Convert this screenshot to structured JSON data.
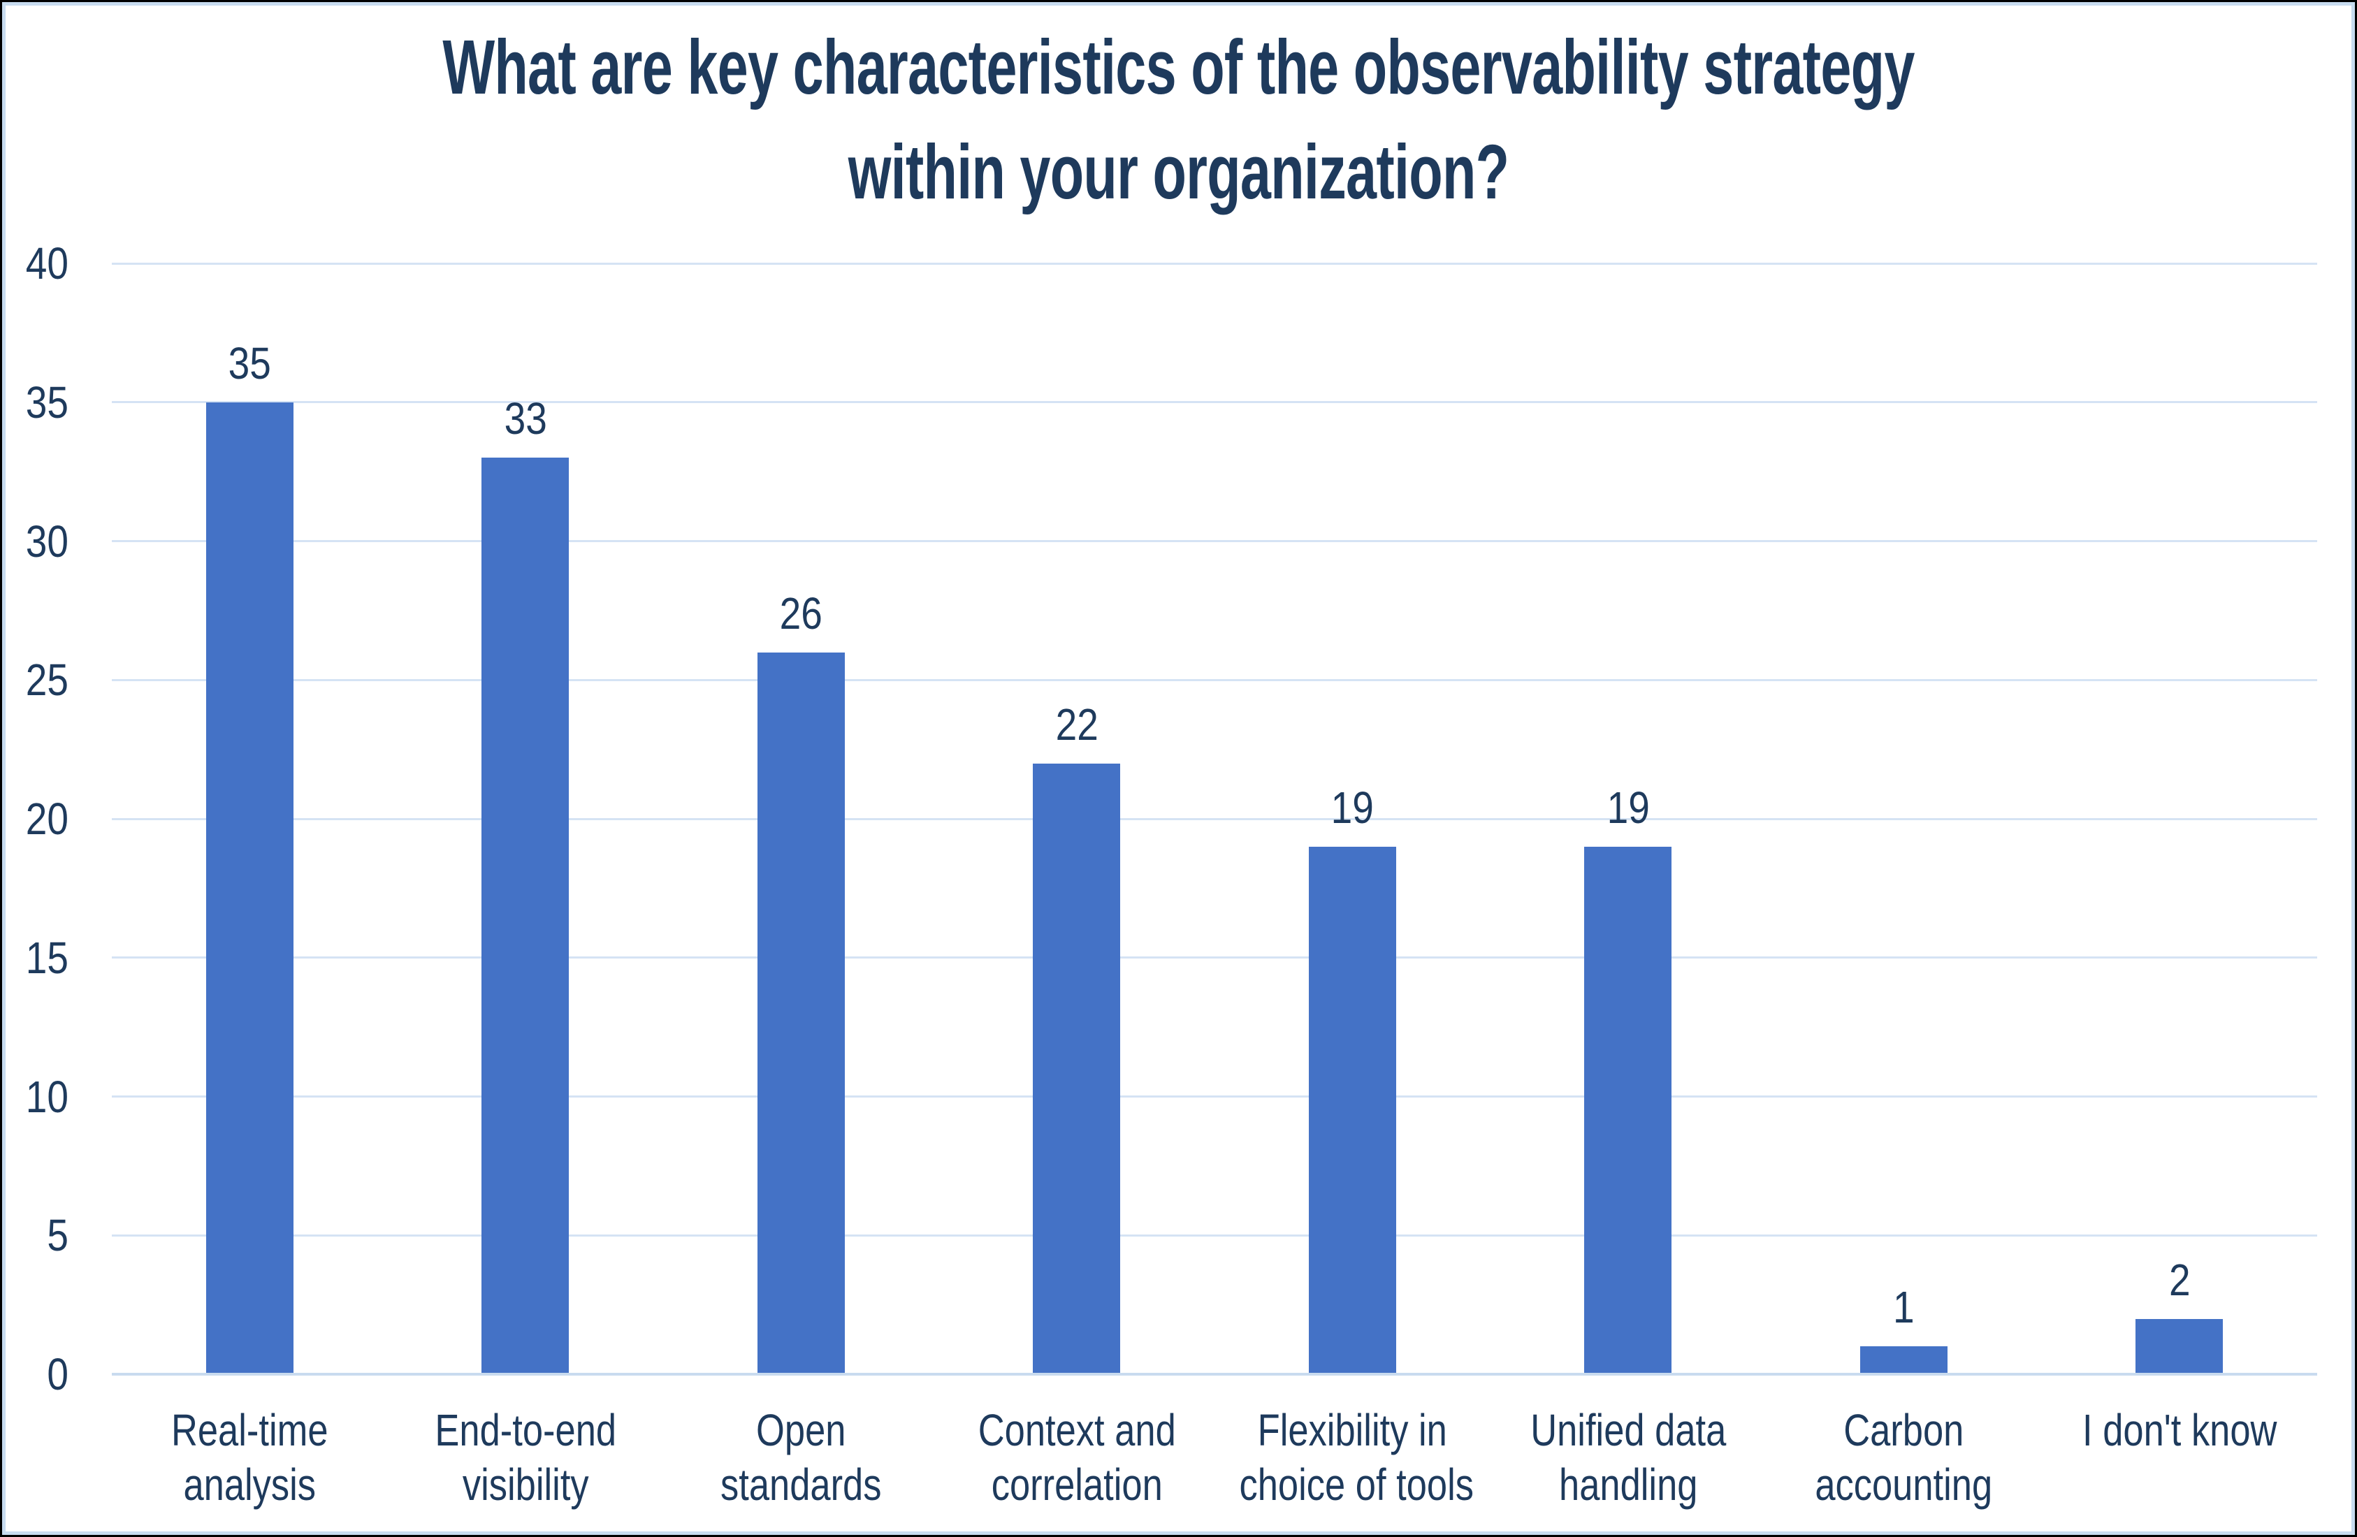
{
  "chart_data": {
    "type": "bar",
    "title": "What are key characteristics of the observability strategy within your organization?",
    "title_lines": [
      "What are key characteristics of the observability strategy",
      "within your organization?"
    ],
    "categories": [
      "Real-time analysis",
      "End-to-end visibility",
      "Open standards",
      "Context and correlation",
      "Flexibility in choice of tools",
      "Unified data handling",
      "Carbon accounting",
      "I don't know"
    ],
    "categories_wrapped": [
      [
        "Real-time",
        "analysis"
      ],
      [
        "End-to-end",
        "visibility"
      ],
      [
        "Open",
        "standards"
      ],
      [
        "Context and",
        "correlation"
      ],
      [
        "Flexibility in",
        "choice of tools"
      ],
      [
        "Unified data",
        "handling"
      ],
      [
        "Carbon",
        "accounting"
      ],
      [
        "I don't know"
      ]
    ],
    "values": [
      35,
      33,
      26,
      22,
      19,
      19,
      1,
      2
    ],
    "data_labels": [
      "35",
      "33",
      "26",
      "22",
      "19",
      "19",
      "1",
      "2"
    ],
    "xlabel": "",
    "ylabel": "",
    "ylim": [
      0,
      40
    ],
    "yticks": [
      0,
      5,
      10,
      15,
      20,
      25,
      30,
      35,
      40
    ],
    "grid": true,
    "legend": false,
    "colors": {
      "bar": "#4472C6",
      "text": "#1E3A5C",
      "gridline": "#D5E3F4",
      "axis_line": "#C9DBEF",
      "inner_border": "#C8DCF0",
      "outer_border": "#000000",
      "background": "#FFFFFF"
    }
  }
}
